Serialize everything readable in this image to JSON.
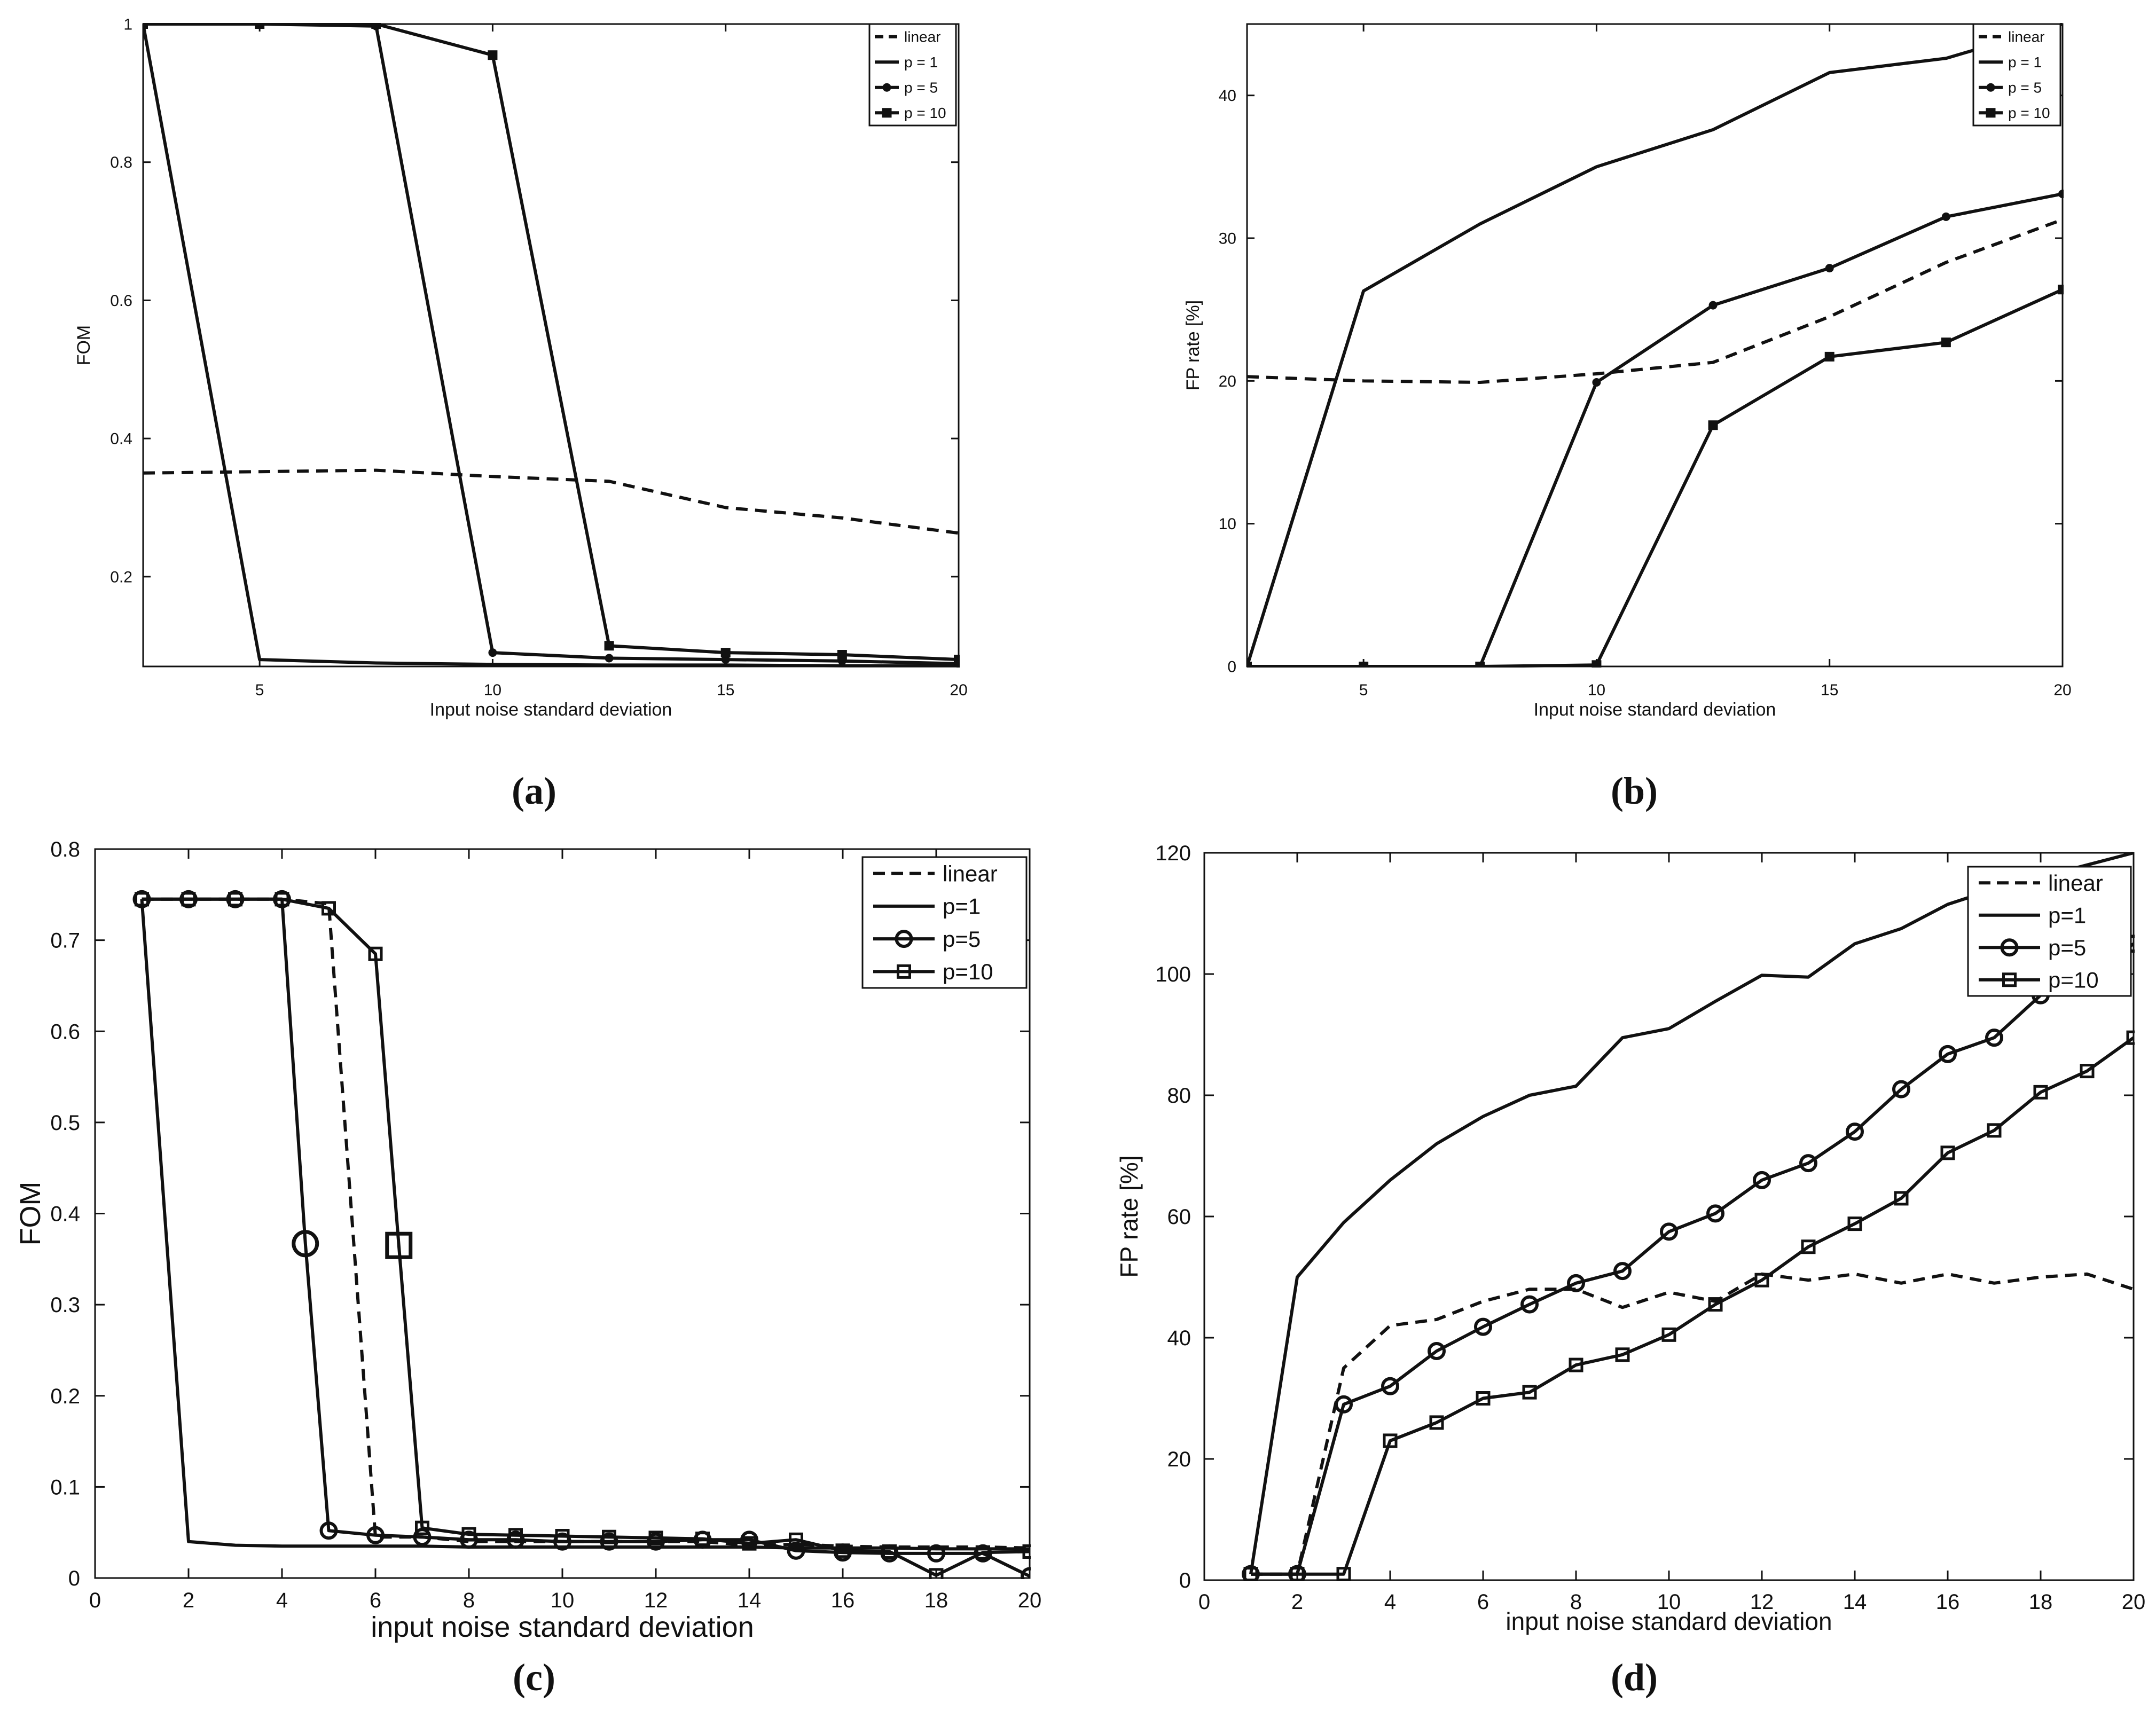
{
  "chart_data": [
    {
      "id": "a",
      "caption": "(a)",
      "type": "line",
      "xlabel": "Input noise standard deviation",
      "ylabel": "FOM",
      "xlim": [
        2.5,
        20
      ],
      "ylim": [
        0.07,
        1
      ],
      "xticks": [
        5,
        10,
        15,
        20
      ],
      "yticks": [
        0.2,
        0.4,
        0.6,
        0.8,
        1
      ],
      "ytick_labels": [
        "0.2",
        "0.4",
        "0.6",
        "0.8",
        "1"
      ],
      "style": "small",
      "legend": [
        "linear",
        "p = 1",
        "p = 5",
        "p = 10"
      ],
      "series": [
        {
          "name": "linear",
          "dash": true,
          "marker": "none",
          "x": [
            2.5,
            5,
            7.5,
            10,
            12.5,
            15,
            17.5,
            20
          ],
          "y": [
            0.35,
            0.352,
            0.354,
            0.345,
            0.338,
            0.3,
            0.285,
            0.263
          ]
        },
        {
          "name": "p = 1",
          "dash": false,
          "marker": "none",
          "x": [
            2.5,
            5,
            7.5,
            10,
            12.5,
            15,
            17.5,
            20
          ],
          "y": [
            1.0,
            0.08,
            0.075,
            0.073,
            0.072,
            0.072,
            0.071,
            0.071
          ]
        },
        {
          "name": "p = 5",
          "dash": false,
          "marker": "dot",
          "x": [
            2.5,
            5,
            7.5,
            10,
            12.5,
            15,
            17.5,
            20
          ],
          "y": [
            1.0,
            1.0,
            0.997,
            0.09,
            0.082,
            0.08,
            0.078,
            0.074
          ]
        },
        {
          "name": "p = 10",
          "dash": false,
          "marker": "square",
          "x": [
            2.5,
            5,
            7.5,
            10,
            12.5,
            15,
            17.5,
            20
          ],
          "y": [
            1.0,
            1.0,
            1.0,
            0.955,
            0.1,
            0.09,
            0.087,
            0.08
          ]
        }
      ]
    },
    {
      "id": "b",
      "caption": "(b)",
      "type": "line",
      "xlabel": "Input noise standard deviation",
      "ylabel": "FP rate [%]",
      "xlim": [
        2.5,
        20
      ],
      "ylim": [
        0,
        45
      ],
      "xticks": [
        5,
        10,
        15,
        20
      ],
      "yticks": [
        0,
        10,
        20,
        30,
        40
      ],
      "ytick_labels": [
        "0",
        "10",
        "20",
        "30",
        "40"
      ],
      "style": "small",
      "legend": [
        "linear",
        "p = 1",
        "p = 5",
        "p = 10"
      ],
      "series": [
        {
          "name": "linear",
          "dash": true,
          "marker": "none",
          "x": [
            2.5,
            5,
            7.5,
            10,
            12.5,
            15,
            17.5,
            20
          ],
          "y": [
            20.3,
            20.0,
            19.9,
            20.5,
            21.3,
            24.5,
            28.3,
            31.3
          ]
        },
        {
          "name": "p = 1",
          "dash": false,
          "marker": "none",
          "x": [
            2.5,
            5,
            7.5,
            10,
            12.5,
            15,
            17.5,
            20
          ],
          "y": [
            0,
            26.3,
            31.0,
            35.0,
            37.6,
            41.6,
            42.6,
            45.0
          ]
        },
        {
          "name": "p = 5",
          "dash": false,
          "marker": "dot",
          "x": [
            2.5,
            5,
            7.5,
            10,
            12.5,
            15,
            17.5,
            20
          ],
          "y": [
            0,
            0,
            0,
            19.9,
            25.3,
            27.9,
            31.5,
            33.1
          ]
        },
        {
          "name": "p = 10",
          "dash": false,
          "marker": "square",
          "x": [
            2.5,
            5,
            7.5,
            10,
            12.5,
            15,
            17.5,
            20
          ],
          "y": [
            0,
            0,
            0,
            0.1,
            16.9,
            21.7,
            22.7,
            26.4
          ]
        }
      ]
    },
    {
      "id": "c",
      "caption": "(c)",
      "type": "line",
      "xlabel": "input noise standard deviation",
      "ylabel": "FOM",
      "xlim": [
        0,
        20
      ],
      "ylim": [
        0,
        0.8
      ],
      "xticks": [
        0,
        2,
        4,
        6,
        8,
        10,
        12,
        14,
        16,
        18,
        20
      ],
      "yticks": [
        0,
        0.1,
        0.2,
        0.3,
        0.4,
        0.5,
        0.6,
        0.7,
        0.8
      ],
      "ytick_labels": [
        "0",
        "0.1",
        "0.2",
        "0.3",
        "0.4",
        "0.5",
        "0.6",
        "0.7",
        "0.8"
      ],
      "style": "large",
      "legend": [
        "linear",
        "p=1",
        "p=5",
        "p=10"
      ],
      "series": [
        {
          "name": "linear",
          "dash": true,
          "marker": "none",
          "x": [
            1,
            2,
            3,
            4,
            5,
            6,
            7,
            8,
            9,
            10,
            11,
            12,
            13,
            14,
            15,
            16,
            17,
            18,
            19,
            20
          ],
          "y": [
            0.745,
            0.745,
            0.745,
            0.745,
            0.74,
            0.045,
            0.045,
            0.04,
            0.04,
            0.04,
            0.04,
            0.04,
            0.04,
            0.036,
            0.037,
            0.035,
            0.034,
            0.034,
            0.034,
            0.033
          ]
        },
        {
          "name": "p=1",
          "dash": false,
          "marker": "none",
          "x": [
            1,
            2,
            3,
            4,
            5,
            6,
            7,
            8,
            9,
            10,
            11,
            12,
            13,
            14,
            15,
            16,
            17,
            18,
            19,
            20
          ],
          "y": [
            0.745,
            0.04,
            0.036,
            0.035,
            0.035,
            0.035,
            0.035,
            0.034,
            0.034,
            0.034,
            0.034,
            0.034,
            0.034,
            0.034,
            0.033,
            0.033,
            0.033,
            0.032,
            0.032,
            0.032
          ]
        },
        {
          "name": "p=5",
          "dash": false,
          "marker": "circle",
          "x": [
            1,
            2,
            3,
            4,
            4.5,
            5,
            6,
            7,
            8,
            9,
            10,
            11,
            12,
            13,
            14,
            15,
            16,
            17,
            18,
            19,
            20
          ],
          "y": [
            0.745,
            0.745,
            0.745,
            0.745,
            0.367,
            0.052,
            0.047,
            0.045,
            0.042,
            0.042,
            0.04,
            0.04,
            0.04,
            0.042,
            0.042,
            0.03,
            0.028,
            0.027,
            0.027,
            0.027,
            0.002
          ]
        },
        {
          "name": "p=10",
          "dash": false,
          "marker": "square",
          "x": [
            1,
            2,
            3,
            4,
            5,
            6,
            6.5,
            7,
            8,
            9,
            10,
            11,
            12,
            13,
            14,
            15,
            16,
            17,
            18,
            19,
            20
          ],
          "y": [
            0.745,
            0.745,
            0.745,
            0.745,
            0.735,
            0.685,
            0.365,
            0.055,
            0.048,
            0.047,
            0.046,
            0.045,
            0.044,
            0.043,
            0.038,
            0.042,
            0.03,
            0.029,
            0.003,
            0.028,
            0.029
          ]
        }
      ]
    },
    {
      "id": "d",
      "caption": "(d)",
      "type": "line",
      "xlabel": "input noise standard deviation",
      "ylabel": "FP rate [%]",
      "xlim": [
        0,
        20
      ],
      "ylim": [
        0,
        120
      ],
      "xticks": [
        0,
        2,
        4,
        6,
        8,
        10,
        12,
        14,
        16,
        18,
        20
      ],
      "yticks": [
        0,
        20,
        40,
        60,
        80,
        100,
        120
      ],
      "ytick_labels": [
        "0",
        "20",
        "40",
        "60",
        "80",
        "100",
        "120"
      ],
      "style": "large",
      "legend": [
        "linear",
        "p=1",
        "p=5",
        "p=10"
      ],
      "series": [
        {
          "name": "linear",
          "dash": true,
          "marker": "none",
          "x": [
            1,
            2,
            3,
            4,
            5,
            6,
            7,
            8,
            9,
            10,
            11,
            12,
            13,
            14,
            15,
            16,
            17,
            18,
            19,
            20
          ],
          "y": [
            1,
            1,
            35,
            42,
            43,
            46,
            48,
            48,
            45,
            47.5,
            46,
            50.5,
            49.5,
            50.5,
            49,
            50.5,
            49,
            50,
            50.5,
            48
          ]
        },
        {
          "name": "p=1",
          "dash": false,
          "marker": "none",
          "x": [
            1,
            2,
            3,
            4,
            5,
            6,
            7,
            8,
            9,
            10,
            11,
            12,
            13,
            14,
            15,
            16,
            17,
            18,
            19,
            20
          ],
          "y": [
            1,
            50,
            59,
            66,
            72,
            76.5,
            80,
            81.5,
            89.5,
            91,
            95.5,
            99.8,
            99.5,
            105,
            107.5,
            111.5,
            114,
            116,
            118,
            120
          ]
        },
        {
          "name": "p=5",
          "dash": false,
          "marker": "circle",
          "x": [
            1,
            2,
            3,
            4,
            5,
            6,
            7,
            8,
            9,
            10,
            11,
            12,
            13,
            14,
            15,
            16,
            17,
            18,
            19,
            20
          ],
          "y": [
            1,
            1,
            29,
            32,
            37.8,
            41.8,
            45.5,
            49,
            51,
            57.5,
            60.5,
            66,
            68.8,
            74,
            81,
            86.8,
            89.5,
            96.5,
            99.5,
            105
          ]
        },
        {
          "name": "p=10",
          "dash": false,
          "marker": "square",
          "x": [
            1,
            2,
            3,
            4,
            5,
            6,
            7,
            8,
            9,
            10,
            11,
            12,
            13,
            14,
            15,
            16,
            17,
            18,
            19,
            20
          ],
          "y": [
            1,
            1,
            1,
            23,
            26,
            30,
            31,
            35.5,
            37.2,
            40.5,
            45.5,
            49.5,
            55,
            58.8,
            63,
            70.5,
            74.2,
            80.5,
            84,
            89.5
          ]
        }
      ]
    }
  ]
}
